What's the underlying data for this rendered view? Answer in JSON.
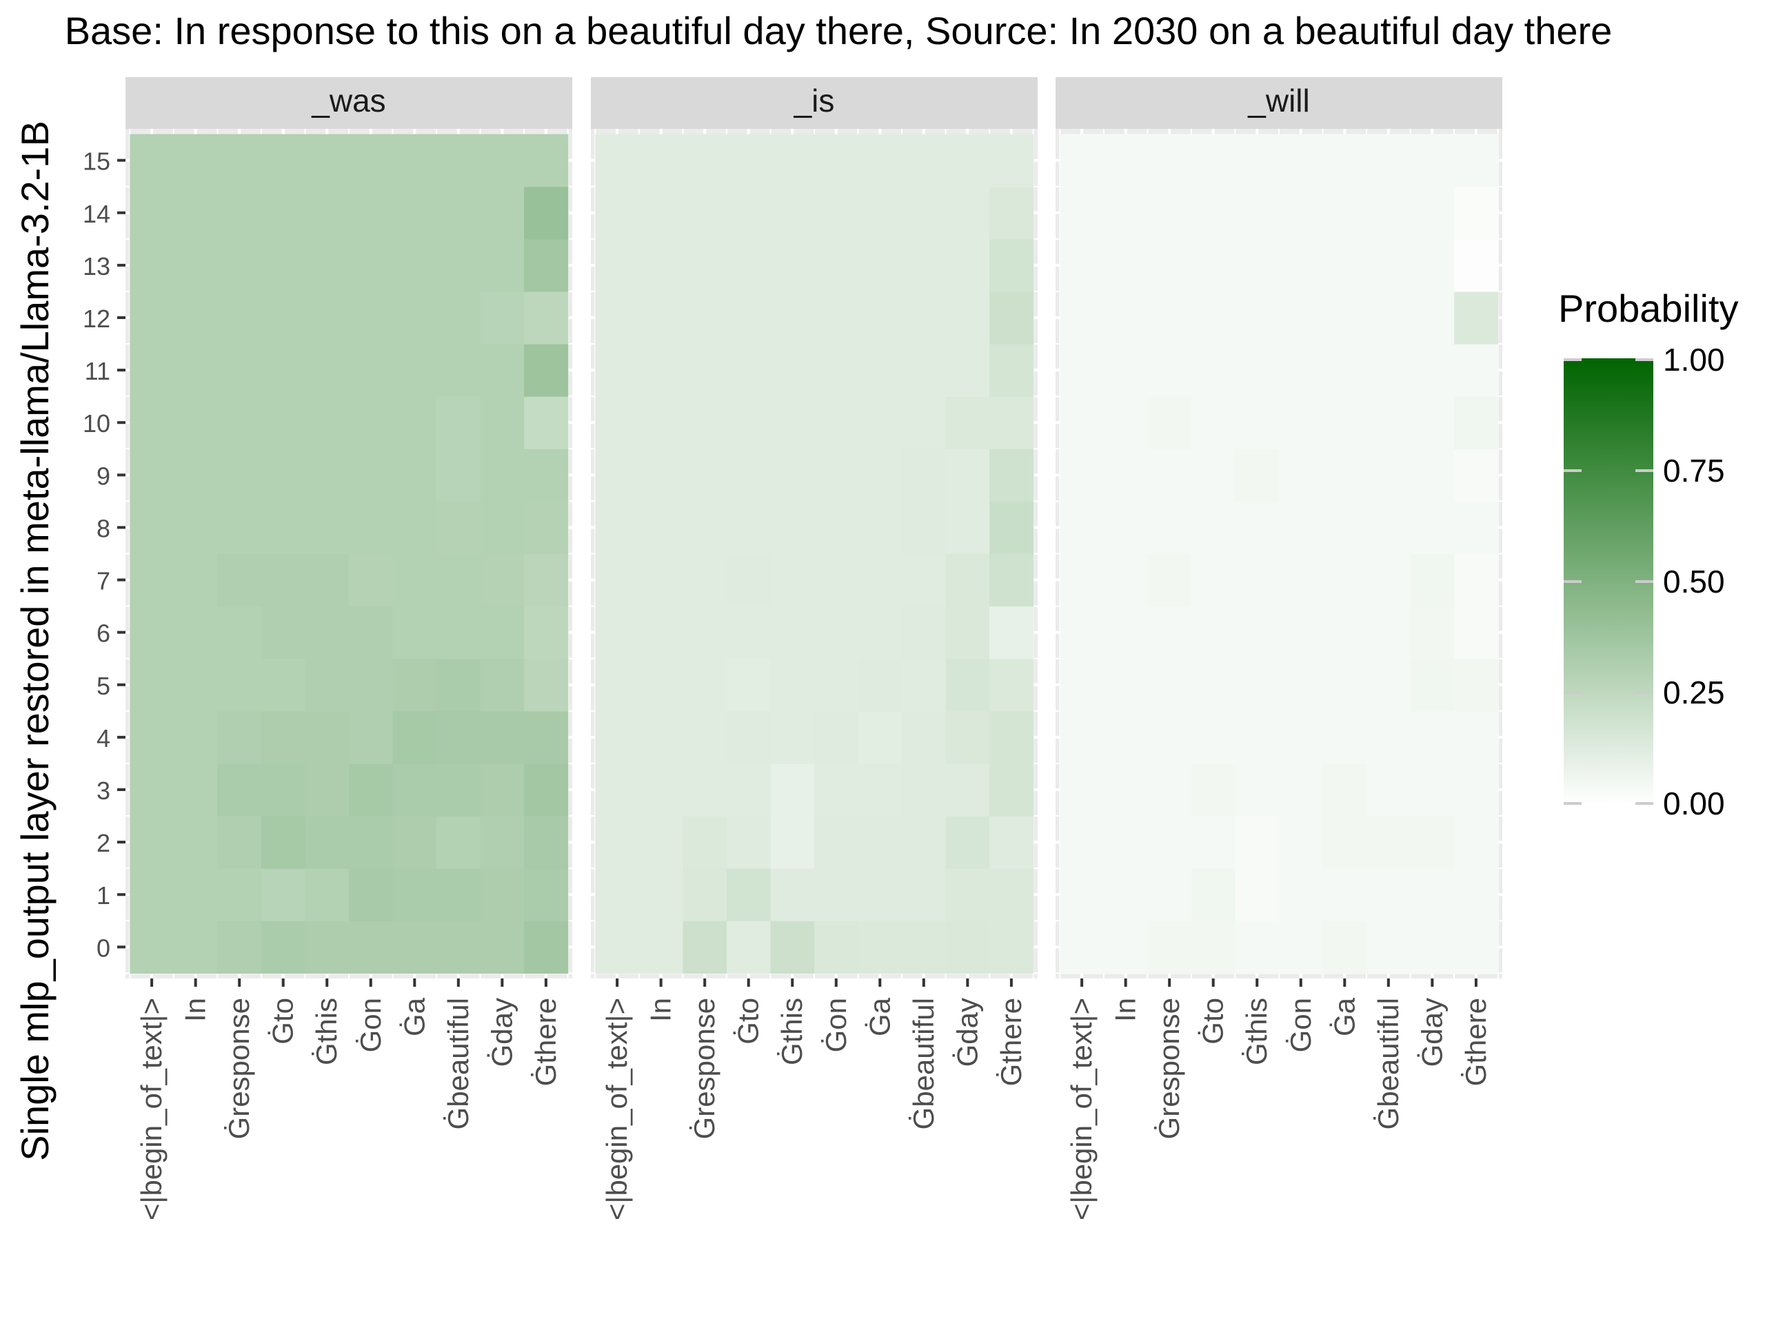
{
  "chart_data": {
    "type": "heatmap",
    "title": "Base: In response to this on a beautiful day there, Source: In 2030 on a beautiful day there",
    "ylabel": "Single mlp_output layer restored in meta-llama/Llama-3.2-1B",
    "xlabel": "",
    "grid": true,
    "legend_position": "right",
    "y_categories": [
      "0",
      "1",
      "2",
      "3",
      "4",
      "5",
      "6",
      "7",
      "8",
      "9",
      "10",
      "11",
      "12",
      "13",
      "14",
      "15"
    ],
    "x_categories": [
      "<|begin_of_text|>",
      "In",
      "Ġresponse",
      "Ġto",
      "Ġthis",
      "Ġon",
      "Ġa",
      "Ġbeautiful",
      "Ġday",
      "Ġthere"
    ],
    "legend": {
      "title": "Probability",
      "min": 0,
      "max": 1,
      "ticks": [
        "1.00",
        "0.75",
        "0.50",
        "0.25",
        "0.00"
      ],
      "color_low": "#ffffff",
      "color_high": "#006400"
    },
    "panels": [
      {
        "label": "_was",
        "z": [
          [
            0.3,
            0.3,
            0.31,
            0.33,
            0.32,
            0.32,
            0.32,
            0.32,
            0.32,
            0.36
          ],
          [
            0.3,
            0.3,
            0.3,
            0.28,
            0.3,
            0.34,
            0.33,
            0.33,
            0.32,
            0.33
          ],
          [
            0.3,
            0.3,
            0.31,
            0.35,
            0.33,
            0.33,
            0.32,
            0.3,
            0.31,
            0.34
          ],
          [
            0.3,
            0.3,
            0.33,
            0.33,
            0.32,
            0.35,
            0.33,
            0.33,
            0.32,
            0.36
          ],
          [
            0.3,
            0.3,
            0.31,
            0.32,
            0.32,
            0.31,
            0.35,
            0.34,
            0.34,
            0.34
          ],
          [
            0.3,
            0.3,
            0.3,
            0.3,
            0.31,
            0.31,
            0.32,
            0.33,
            0.31,
            0.27
          ],
          [
            0.3,
            0.3,
            0.3,
            0.31,
            0.31,
            0.31,
            0.3,
            0.3,
            0.3,
            0.26
          ],
          [
            0.3,
            0.3,
            0.31,
            0.31,
            0.31,
            0.29,
            0.3,
            0.3,
            0.29,
            0.27
          ],
          [
            0.3,
            0.3,
            0.3,
            0.3,
            0.3,
            0.3,
            0.3,
            0.29,
            0.3,
            0.29
          ],
          [
            0.3,
            0.3,
            0.3,
            0.3,
            0.3,
            0.3,
            0.3,
            0.28,
            0.3,
            0.3
          ],
          [
            0.3,
            0.3,
            0.3,
            0.3,
            0.3,
            0.3,
            0.3,
            0.28,
            0.3,
            0.23
          ],
          [
            0.3,
            0.3,
            0.3,
            0.3,
            0.3,
            0.3,
            0.3,
            0.3,
            0.3,
            0.38
          ],
          [
            0.3,
            0.3,
            0.3,
            0.3,
            0.3,
            0.3,
            0.3,
            0.3,
            0.28,
            0.26
          ],
          [
            0.3,
            0.3,
            0.3,
            0.3,
            0.3,
            0.3,
            0.3,
            0.3,
            0.3,
            0.36
          ],
          [
            0.3,
            0.3,
            0.3,
            0.3,
            0.3,
            0.3,
            0.3,
            0.3,
            0.3,
            0.4
          ],
          [
            0.3,
            0.3,
            0.3,
            0.3,
            0.3,
            0.3,
            0.3,
            0.3,
            0.3,
            0.3
          ]
        ]
      },
      {
        "label": "_is",
        "z": [
          [
            0.12,
            0.12,
            0.2,
            0.12,
            0.2,
            0.15,
            0.14,
            0.14,
            0.15,
            0.14
          ],
          [
            0.12,
            0.12,
            0.15,
            0.18,
            0.13,
            0.13,
            0.13,
            0.13,
            0.14,
            0.14
          ],
          [
            0.12,
            0.12,
            0.14,
            0.13,
            0.09,
            0.13,
            0.13,
            0.13,
            0.16,
            0.13
          ],
          [
            0.12,
            0.12,
            0.12,
            0.12,
            0.09,
            0.12,
            0.12,
            0.13,
            0.13,
            0.17
          ],
          [
            0.12,
            0.12,
            0.12,
            0.13,
            0.12,
            0.13,
            0.11,
            0.13,
            0.15,
            0.17
          ],
          [
            0.12,
            0.12,
            0.12,
            0.11,
            0.12,
            0.12,
            0.13,
            0.12,
            0.16,
            0.14
          ],
          [
            0.12,
            0.12,
            0.12,
            0.12,
            0.12,
            0.12,
            0.12,
            0.13,
            0.15,
            0.09
          ],
          [
            0.12,
            0.12,
            0.12,
            0.13,
            0.12,
            0.12,
            0.12,
            0.12,
            0.15,
            0.19
          ],
          [
            0.12,
            0.12,
            0.12,
            0.12,
            0.12,
            0.12,
            0.12,
            0.13,
            0.12,
            0.21
          ],
          [
            0.12,
            0.12,
            0.12,
            0.12,
            0.12,
            0.12,
            0.12,
            0.13,
            0.12,
            0.19
          ],
          [
            0.12,
            0.12,
            0.12,
            0.12,
            0.12,
            0.12,
            0.12,
            0.12,
            0.14,
            0.14
          ],
          [
            0.12,
            0.12,
            0.12,
            0.12,
            0.12,
            0.12,
            0.12,
            0.12,
            0.12,
            0.17
          ],
          [
            0.12,
            0.12,
            0.12,
            0.12,
            0.12,
            0.12,
            0.12,
            0.12,
            0.12,
            0.2
          ],
          [
            0.12,
            0.12,
            0.12,
            0.12,
            0.12,
            0.12,
            0.12,
            0.12,
            0.12,
            0.18
          ],
          [
            0.12,
            0.12,
            0.12,
            0.12,
            0.12,
            0.12,
            0.12,
            0.12,
            0.12,
            0.15
          ],
          [
            0.12,
            0.12,
            0.12,
            0.12,
            0.12,
            0.12,
            0.12,
            0.12,
            0.12,
            0.12
          ]
        ]
      },
      {
        "label": "_will",
        "z": [
          [
            0.04,
            0.04,
            0.05,
            0.05,
            0.04,
            0.04,
            0.05,
            0.04,
            0.04,
            0.04
          ],
          [
            0.04,
            0.04,
            0.04,
            0.06,
            0.03,
            0.04,
            0.04,
            0.04,
            0.04,
            0.04
          ],
          [
            0.04,
            0.04,
            0.04,
            0.04,
            0.03,
            0.04,
            0.05,
            0.05,
            0.05,
            0.04
          ],
          [
            0.04,
            0.04,
            0.04,
            0.05,
            0.04,
            0.04,
            0.05,
            0.04,
            0.04,
            0.04
          ],
          [
            0.04,
            0.04,
            0.04,
            0.04,
            0.04,
            0.04,
            0.04,
            0.04,
            0.04,
            0.04
          ],
          [
            0.04,
            0.04,
            0.04,
            0.04,
            0.04,
            0.04,
            0.04,
            0.04,
            0.06,
            0.05
          ],
          [
            0.04,
            0.04,
            0.04,
            0.04,
            0.04,
            0.04,
            0.04,
            0.04,
            0.05,
            0.03
          ],
          [
            0.04,
            0.04,
            0.05,
            0.04,
            0.04,
            0.04,
            0.04,
            0.04,
            0.06,
            0.03
          ],
          [
            0.04,
            0.04,
            0.04,
            0.04,
            0.04,
            0.04,
            0.04,
            0.04,
            0.04,
            0.04
          ],
          [
            0.04,
            0.04,
            0.04,
            0.04,
            0.05,
            0.04,
            0.04,
            0.04,
            0.04,
            0.03
          ],
          [
            0.04,
            0.04,
            0.05,
            0.04,
            0.04,
            0.04,
            0.04,
            0.04,
            0.04,
            0.06
          ],
          [
            0.04,
            0.04,
            0.04,
            0.04,
            0.04,
            0.04,
            0.04,
            0.04,
            0.04,
            0.04
          ],
          [
            0.04,
            0.04,
            0.04,
            0.04,
            0.04,
            0.04,
            0.04,
            0.04,
            0.04,
            0.14
          ],
          [
            0.04,
            0.04,
            0.04,
            0.04,
            0.04,
            0.04,
            0.04,
            0.04,
            0.04,
            0.01
          ],
          [
            0.04,
            0.04,
            0.04,
            0.04,
            0.04,
            0.04,
            0.04,
            0.04,
            0.04,
            0.02
          ],
          [
            0.04,
            0.04,
            0.04,
            0.04,
            0.04,
            0.04,
            0.04,
            0.04,
            0.04,
            0.04
          ]
        ]
      }
    ]
  }
}
